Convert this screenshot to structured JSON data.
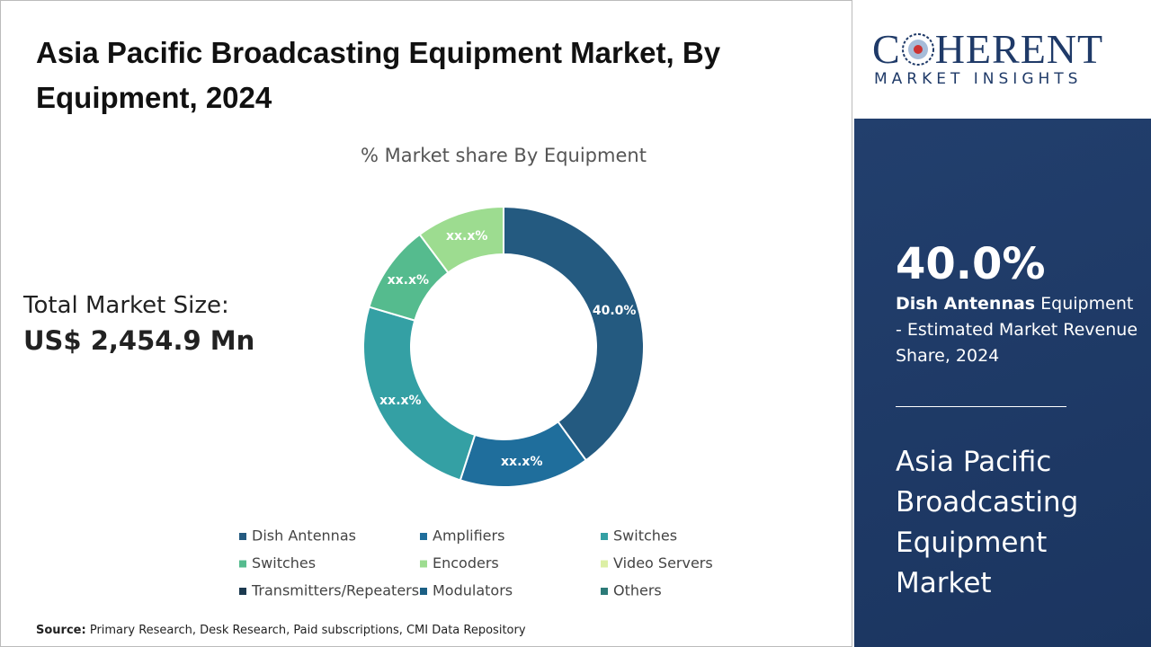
{
  "header": {
    "title": "Asia Pacific Broadcasting Equipment Market, By Equipment, 2024"
  },
  "total_market": {
    "label": "Total Market Size:",
    "value": "US$ 2,454.9 Mn"
  },
  "chart_data": {
    "type": "donut",
    "title": "% Market share By Equipment",
    "categories": [
      "Dish Antennas",
      "Amplifiers",
      "Switches",
      "Switches",
      "Encoders",
      "Video Servers",
      "Transmitters/Repeaters",
      "Modulators",
      "Others"
    ],
    "values": [
      40.0,
      15,
      24.6,
      10.2,
      10.2,
      0,
      0,
      0,
      0
    ],
    "value_labels": [
      "40.0%",
      "xx.x%",
      "xx.x%",
      "xx.x%",
      "xx.x%",
      null,
      null,
      null,
      null
    ],
    "colors": [
      "#245a80",
      "#1f6e9c",
      "#34a0a4",
      "#55bb8e",
      "#9ddc90",
      "#dcefa5",
      "#1c3a50",
      "#1b5f84",
      "#2c7a78"
    ]
  },
  "sidebar": {
    "logo_first": "C",
    "logo_rest": "HERENT",
    "tagline": "MARKET INSIGHTS",
    "highlight_value": "40.0%",
    "highlight_bold": "Dish Antennas",
    "highlight_text": "Equipment - Estimated Market Revenue Share, 2024",
    "market_name": "Asia Pacific Broadcasting Equipment Market"
  },
  "source": {
    "label": "Source:",
    "text": "Primary Research, Desk Research, Paid subscriptions, CMI Data Repository"
  }
}
